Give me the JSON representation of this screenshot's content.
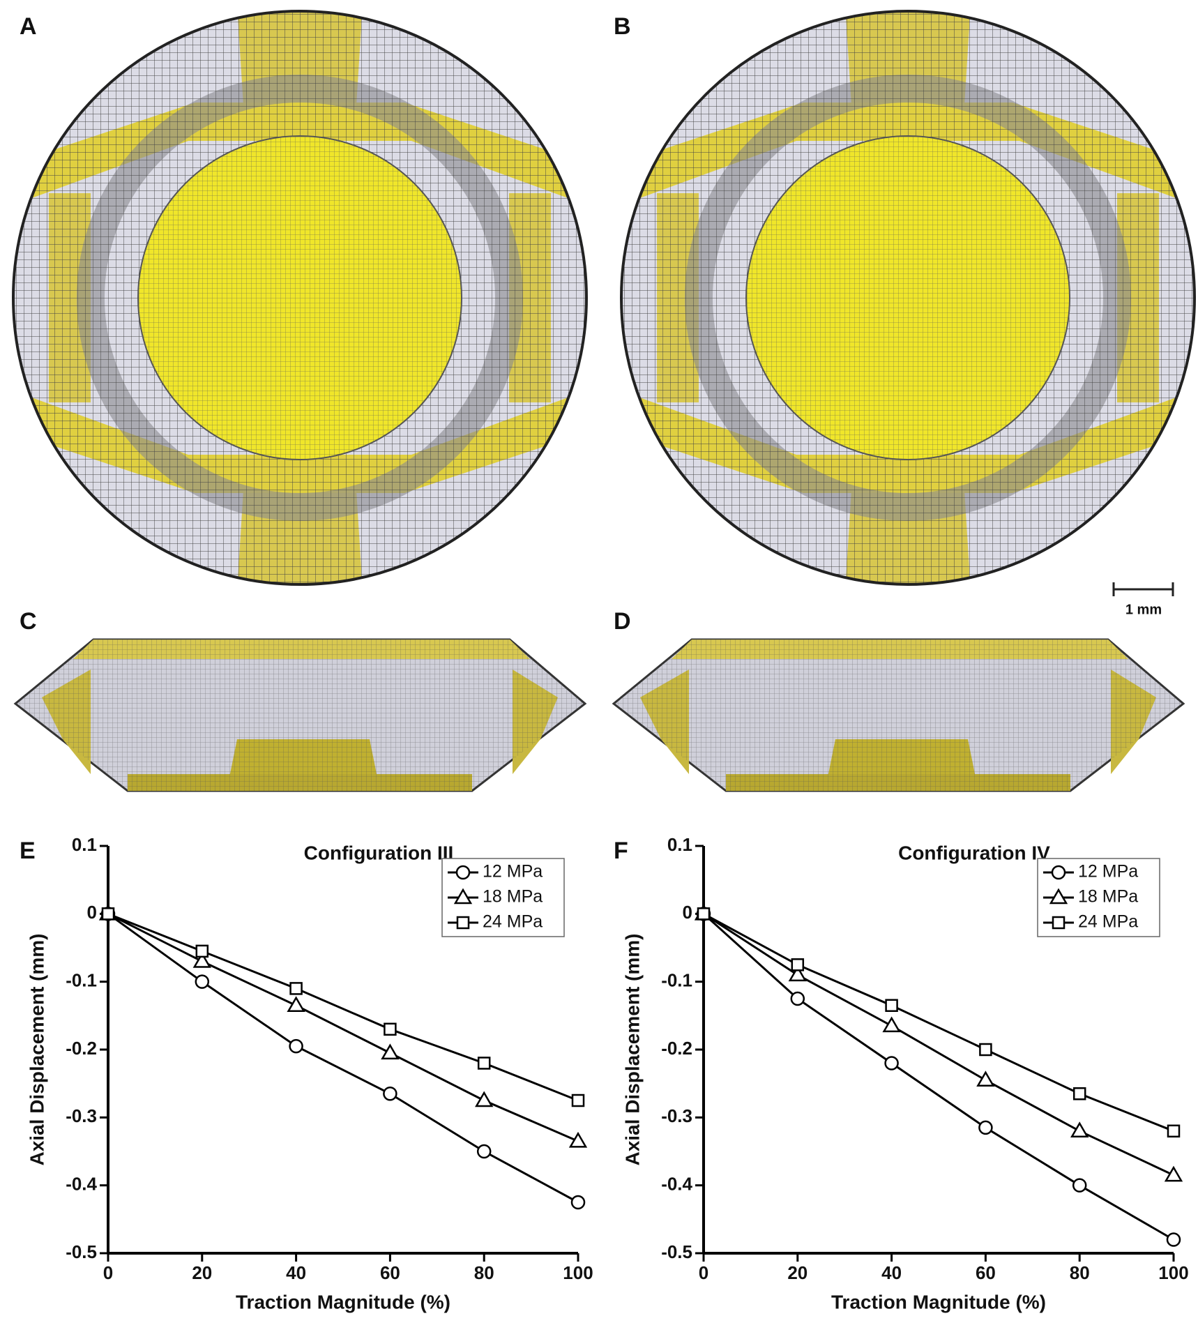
{
  "panel_labels": [
    "A",
    "B",
    "C",
    "D",
    "E",
    "F"
  ],
  "scale_bar_label": "1 mm",
  "chart_data": [
    {
      "type": "line",
      "title": "Configuration III",
      "x_label": "Traction Magnitude (%)",
      "y_label": "Axial Displacement (mm)",
      "x": [
        0,
        20,
        40,
        60,
        80,
        100
      ],
      "series": [
        {
          "name": "12 MPa",
          "color": "#000000",
          "marker": "circle",
          "values": [
            0,
            -0.1,
            -0.195,
            -0.265,
            -0.35,
            -0.425
          ]
        },
        {
          "name": "18 MPa",
          "color": "#000000",
          "marker": "triangle",
          "values": [
            0,
            -0.07,
            -0.135,
            -0.205,
            -0.275,
            -0.335
          ]
        },
        {
          "name": "24 MPa",
          "color": "#000000",
          "marker": "square",
          "values": [
            0,
            -0.055,
            -0.11,
            -0.17,
            -0.22,
            -0.275
          ]
        }
      ],
      "xlim": [
        0,
        100
      ],
      "xticks": [
        0,
        20,
        40,
        60,
        80,
        100
      ],
      "ylim": [
        -0.5,
        0.1
      ],
      "yticks": [
        -0.5,
        -0.4,
        -0.3,
        -0.2,
        -0.1,
        0,
        0.1
      ],
      "legend": "upper right",
      "grid": false
    },
    {
      "type": "line",
      "title": "Configuration IV",
      "x_label": "Traction Magnitude (%)",
      "y_label": "Axial Displacement (mm)",
      "x": [
        0,
        20,
        40,
        60,
        80,
        100
      ],
      "series": [
        {
          "name": "12 MPa",
          "color": "#000000",
          "marker": "circle",
          "values": [
            0,
            -0.125,
            -0.22,
            -0.315,
            -0.4,
            -0.48
          ]
        },
        {
          "name": "18 MPa",
          "color": "#000000",
          "marker": "triangle",
          "values": [
            0,
            -0.09,
            -0.165,
            -0.245,
            -0.32,
            -0.385
          ]
        },
        {
          "name": "24 MPa",
          "color": "#000000",
          "marker": "square",
          "values": [
            0,
            -0.075,
            -0.135,
            -0.2,
            -0.265,
            -0.32
          ]
        }
      ],
      "xlim": [
        0,
        100
      ],
      "xticks": [
        0,
        20,
        40,
        60,
        80,
        100
      ],
      "ylim": [
        -0.5,
        0.1
      ],
      "yticks": [
        -0.5,
        -0.4,
        -0.3,
        -0.2,
        -0.1,
        0,
        0.1
      ],
      "legend": "upper right",
      "grid": false
    }
  ]
}
